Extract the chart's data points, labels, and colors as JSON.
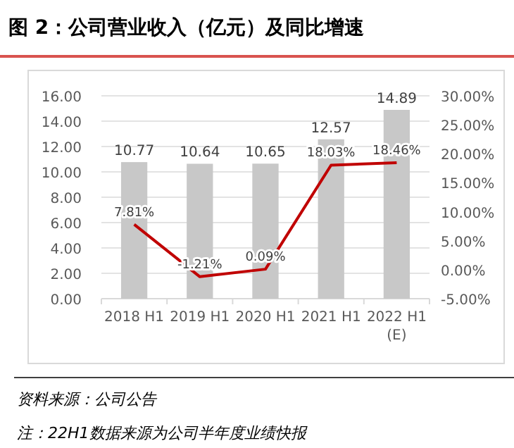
{
  "chart_data": {
    "type": "bar",
    "title": "图 2：公司营业收入（亿元）及同比增速",
    "categories": [
      "2018 H1",
      "2019 H1",
      "2020 H1",
      "2021 H1",
      "2022 H1 (E)"
    ],
    "series": [
      {
        "color": "#c8c8c8",
        "values": [
          10.77,
          10.64,
          10.65,
          12.57,
          14.89
        ],
        "value_labels": [
          "10.77",
          "10.64",
          "10.65",
          "12.57",
          "14.89"
        ]
      },
      {
        "type": "line",
        "axis": "y2",
        "color": "#c00000",
        "values": [
          7.81,
          -1.21,
          0.09,
          18.03,
          18.46
        ],
        "value_labels": [
          "7.81%",
          "-1.21%",
          "0.09%",
          "18.03%",
          "18.46%"
        ]
      }
    ],
    "ylim": [
      0,
      16
    ],
    "yticks": [
      {
        "value": 0,
        "label": "0.00"
      },
      {
        "value": 2,
        "label": "2.00"
      },
      {
        "value": 4,
        "label": "4.00"
      },
      {
        "value": 6,
        "label": "6.00"
      },
      {
        "value": 8,
        "label": "8.00"
      },
      {
        "value": 10,
        "label": "10.00"
      },
      {
        "value": 12,
        "label": "12.00"
      },
      {
        "value": 14,
        "label": "14.00"
      },
      {
        "value": 16,
        "label": "16.00"
      }
    ],
    "y2lim": [
      -5,
      30
    ],
    "y2ticks": [
      {
        "value": -5,
        "label": "-5.00%"
      },
      {
        "value": 0,
        "label": "0.00%"
      },
      {
        "value": 5,
        "label": "5.00%"
      },
      {
        "value": 10,
        "label": "10.00%"
      },
      {
        "value": 15,
        "label": "15.00%"
      },
      {
        "value": 20,
        "label": "20.00%"
      },
      {
        "value": 25,
        "label": "25.00%"
      },
      {
        "value": 30,
        "label": "30.00%"
      }
    ],
    "grid": "y",
    "annotations": [
      "资料来源：公司公告",
      "注：22H1数据来源为公司半年度业绩快报"
    ]
  }
}
